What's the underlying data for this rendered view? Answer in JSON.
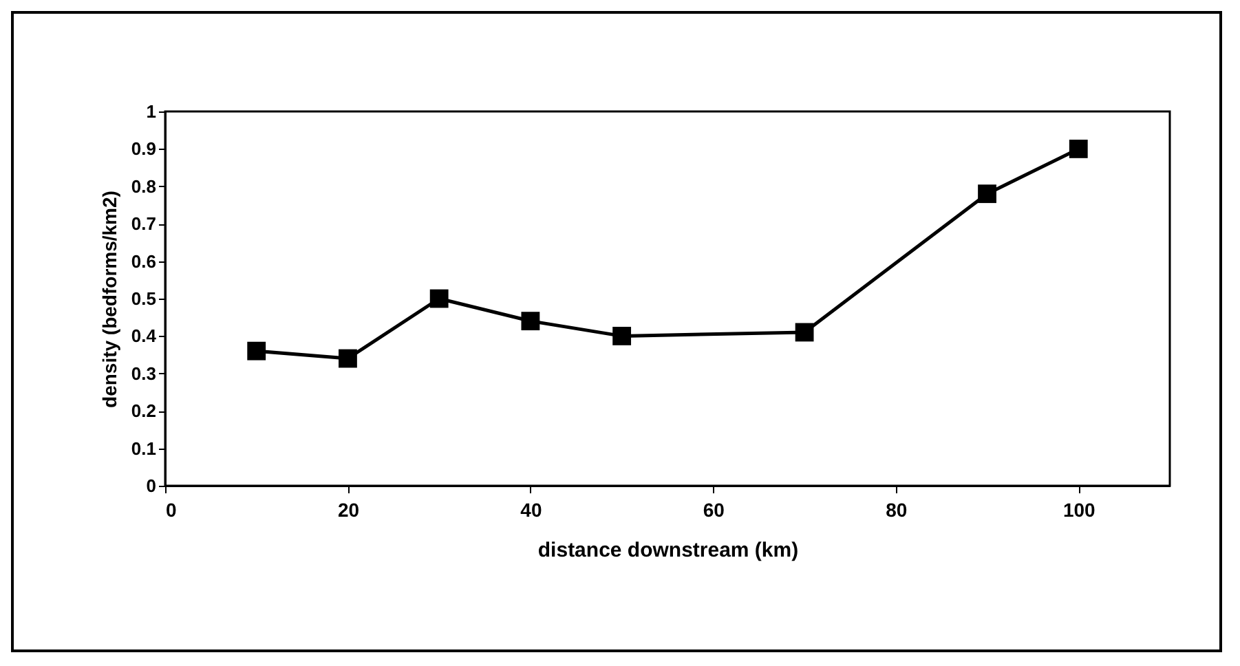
{
  "chart_data": {
    "type": "line",
    "xlabel": "distance downstream (km)",
    "ylabel": "density (bedforms/km2)",
    "x": [
      10,
      20,
      30,
      40,
      50,
      70,
      90,
      100
    ],
    "series": [
      {
        "color": "#000000",
        "values": [
          0.36,
          0.34,
          0.5,
          0.44,
          0.4,
          0.41,
          0.78,
          0.9
        ]
      }
    ],
    "xlim": [
      0,
      110
    ],
    "xticks": [
      0,
      20,
      40,
      60,
      80,
      100
    ],
    "ylim": [
      0,
      1
    ],
    "yticks": [
      0,
      0.1,
      0.2,
      0.3,
      0.4,
      0.5,
      0.6,
      0.7,
      0.8,
      0.9,
      1
    ],
    "marker": "square",
    "line_style": "solid"
  }
}
